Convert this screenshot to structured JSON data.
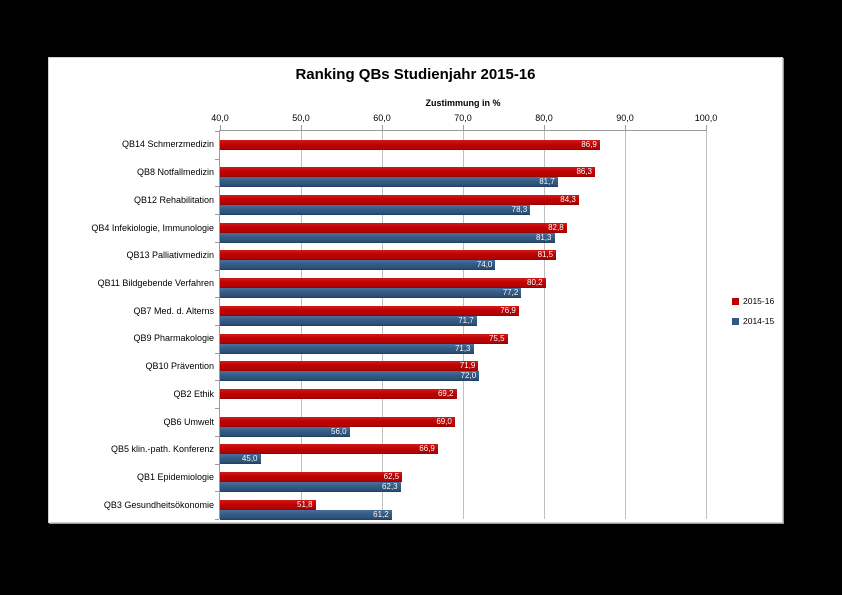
{
  "chart_data": {
    "type": "bar",
    "orientation": "horizontal",
    "title": "Ranking QBs Studienjahr 2015-16",
    "axis_title": "Zustimmung in %",
    "xlim": [
      40,
      100
    ],
    "tick_values": [
      40,
      50,
      60,
      70,
      80,
      90,
      100
    ],
    "x_tick_labels": [
      "40,0",
      "50,0",
      "60,0",
      "70,0",
      "80,0",
      "90,0",
      "100,0"
    ],
    "grid": true,
    "legend_position": "right",
    "categories": [
      "QB14 Schmerzmedizin",
      "QB8 Notfallmedizin",
      "QB12 Rehabilitation",
      "QB4 Infekiologie, Immunologie",
      "QB13 Palliativmedizin",
      "QB11 Bildgebende Verfahren",
      "QB7 Med. d. Alterns",
      "QB9 Pharmakologie",
      "QB10 Prävention",
      "QB2 Ethik",
      "QB6 Umwelt",
      "QB5 klin.-path. Konferenz",
      "QB1 Epidemiologie",
      "QB3 Gesundheitsökonomie"
    ],
    "series": [
      {
        "name": "2015-16",
        "color": "#c00000",
        "values": [
          86.9,
          86.3,
          84.3,
          82.8,
          81.5,
          80.2,
          76.9,
          75.5,
          71.9,
          69.2,
          69.0,
          66.9,
          62.5,
          51.8
        ]
      },
      {
        "name": "2014-15",
        "color": "#31587e",
        "values": [
          null,
          81.7,
          78.3,
          81.3,
          74.0,
          77.2,
          71.7,
          71.3,
          72.0,
          null,
          56.0,
          45.0,
          62.3,
          61.2
        ]
      }
    ]
  }
}
